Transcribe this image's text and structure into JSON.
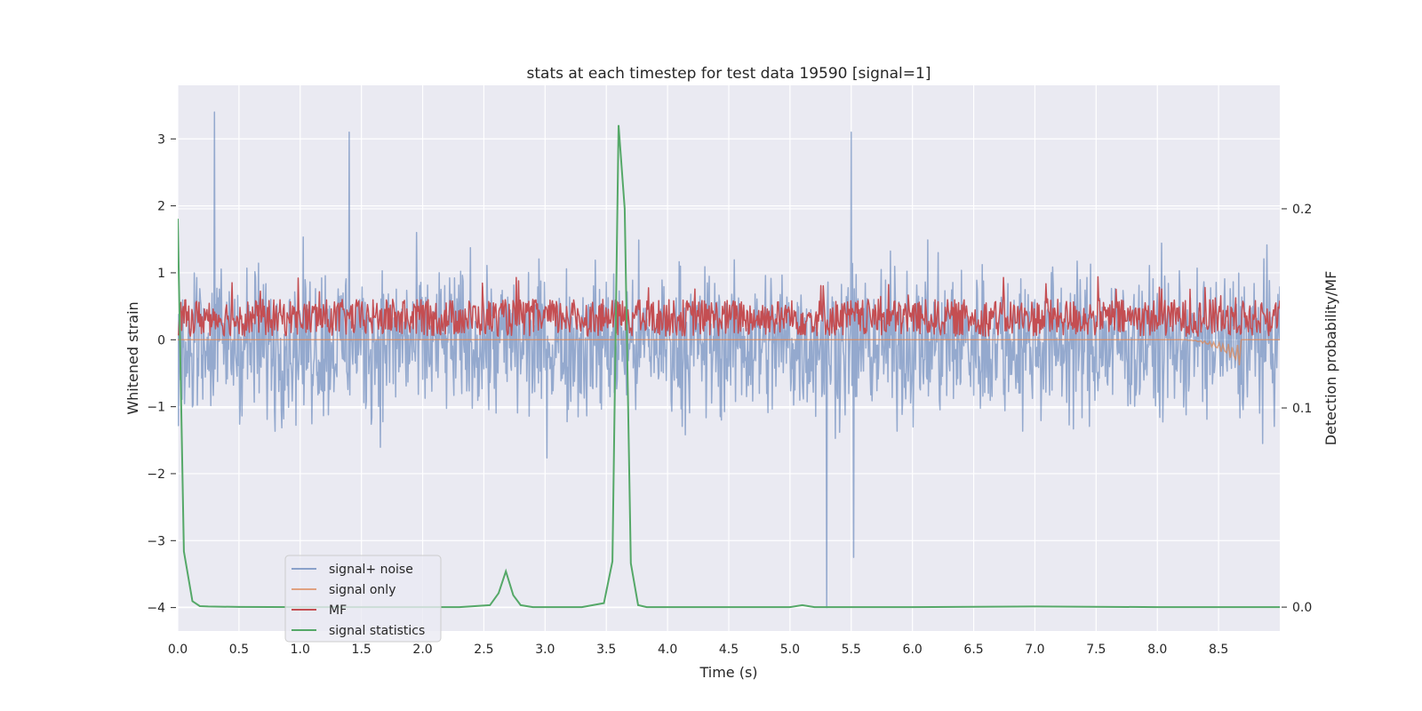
{
  "chart_data": {
    "type": "line",
    "title": "stats at each timestep for test data 19590 [signal=1]",
    "xlabel": "Time (s)",
    "ylabel": "Whitened strain",
    "y2label": "Detection probability/MF",
    "xlim": [
      0,
      9
    ],
    "ylim": [
      -4.35,
      3.8
    ],
    "y2lim": [
      -0.012,
      0.262
    ],
    "xticks": [
      "0.0",
      "0.5",
      "1.0",
      "1.5",
      "2.0",
      "2.5",
      "3.0",
      "3.5",
      "4.0",
      "4.5",
      "5.0",
      "5.5",
      "6.0",
      "6.5",
      "7.0",
      "7.5",
      "8.0",
      "8.5"
    ],
    "yticks": [
      "3",
      "2",
      "1",
      "0",
      "−1",
      "−2",
      "−3",
      "−4"
    ],
    "y2ticks": [
      "0.2",
      "0.1",
      "0.0"
    ],
    "legend_position": "lower-left",
    "colors": {
      "signal_noise": "#4c72b0",
      "signal_only": "#dd8452",
      "mf": "#c44e52",
      "stat": "#55a868",
      "background": "#eaeaf2",
      "grid": "#ffffff"
    },
    "series": [
      {
        "name": "signal+ noise",
        "key": "signal_noise",
        "axis": "left",
        "description": "noise trace approx. within -2.5 to 3.4, spikes at 0.3s (3.4), 1.4s (3.1), 5.3s (-4.0), 5.5s (3.1)"
      },
      {
        "name": "signal only",
        "key": "signal_only",
        "axis": "left",
        "description": "near zero, chirp near 8.5-8.65s reaching about -0.4"
      },
      {
        "name": "MF",
        "key": "mf",
        "axis": "right",
        "description": "fluctuating between about 0.0 and 0.8 on left scale"
      },
      {
        "name": "signal statistics",
        "key": "stat",
        "axis": "right",
        "x": [
          0.0,
          0.05,
          0.12,
          0.18,
          0.25,
          0.5,
          1.0,
          1.5,
          2.0,
          2.3,
          2.55,
          2.62,
          2.68,
          2.74,
          2.8,
          2.9,
          3.3,
          3.48,
          3.55,
          3.6,
          3.65,
          3.7,
          3.76,
          3.83,
          3.9,
          4.5,
          5.0,
          5.1,
          5.2,
          5.5,
          6.0,
          7.0,
          8.0,
          9.0
        ],
        "values": [
          0.195,
          0.028,
          0.003,
          0.0005,
          0.0003,
          0.0001,
          0.0,
          0.0,
          0.0,
          0.0,
          0.001,
          0.007,
          0.018,
          0.006,
          0.001,
          0.0,
          0.0,
          0.002,
          0.023,
          0.242,
          0.2,
          0.022,
          0.001,
          0.0,
          0.0,
          0.0,
          0.0,
          0.001,
          0.0,
          0.0,
          0.0,
          0.0003,
          0.0,
          0.0
        ]
      }
    ]
  }
}
